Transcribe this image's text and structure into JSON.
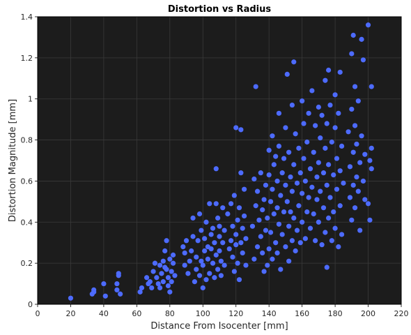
{
  "chart_data": {
    "type": "scatter",
    "title": "Distortion vs Radius",
    "xlabel": "Distance From Isocenter [mm]",
    "ylabel": "Distortion Magnitude [mm]",
    "xlim": [
      0,
      220
    ],
    "ylim": [
      0,
      1.4
    ],
    "xticks": [
      0,
      20,
      40,
      60,
      80,
      100,
      120,
      140,
      160,
      180,
      200,
      220
    ],
    "yticks": [
      0,
      0.2,
      0.4,
      0.6,
      0.8,
      1,
      1.2,
      1.4
    ],
    "xtick_labels": [
      "0",
      "20",
      "40",
      "60",
      "80",
      "100",
      "120",
      "140",
      "160",
      "180",
      "200",
      "220"
    ],
    "ytick_labels": [
      "0",
      "0.2",
      "0.4",
      "0.6",
      "0.8",
      "1",
      "1.2",
      "1.4"
    ],
    "grid": true,
    "colors": {
      "plot_background": "#1c1c1c",
      "grid": "#3a3a3a",
      "marker": "#4d6bff"
    },
    "points": [
      [
        20,
        0.03
      ],
      [
        33,
        0.05
      ],
      [
        34,
        0.06
      ],
      [
        34,
        0.07
      ],
      [
        40,
        0.1
      ],
      [
        41,
        0.04
      ],
      [
        48,
        0.07
      ],
      [
        48,
        0.1
      ],
      [
        49,
        0.14
      ],
      [
        49,
        0.15
      ],
      [
        50,
        0.05
      ],
      [
        62,
        0.06
      ],
      [
        63,
        0.08
      ],
      [
        66,
        0.13
      ],
      [
        67,
        0.1
      ],
      [
        68,
        0.11
      ],
      [
        69,
        0.08
      ],
      [
        70,
        0.16
      ],
      [
        71,
        0.2
      ],
      [
        72,
        0.13
      ],
      [
        73,
        0.1
      ],
      [
        74,
        0.19
      ],
      [
        74,
        0.08
      ],
      [
        75,
        0.15
      ],
      [
        76,
        0.21
      ],
      [
        76,
        0.11
      ],
      [
        77,
        0.18
      ],
      [
        77,
        0.26
      ],
      [
        78,
        0.17
      ],
      [
        78,
        0.31
      ],
      [
        79,
        0.09
      ],
      [
        79,
        0.13
      ],
      [
        80,
        0.22
      ],
      [
        80,
        0.06
      ],
      [
        81,
        0.16
      ],
      [
        81,
        0.11
      ],
      [
        82,
        0.2
      ],
      [
        82,
        0.24
      ],
      [
        83,
        0.14
      ],
      [
        88,
        0.28
      ],
      [
        89,
        0.25
      ],
      [
        89,
        0.19
      ],
      [
        90,
        0.31
      ],
      [
        91,
        0.15
      ],
      [
        92,
        0.21
      ],
      [
        93,
        0.26
      ],
      [
        94,
        0.33
      ],
      [
        94,
        0.42
      ],
      [
        95,
        0.11
      ],
      [
        96,
        0.17
      ],
      [
        96,
        0.23
      ],
      [
        97,
        0.31
      ],
      [
        98,
        0.14
      ],
      [
        98,
        0.44
      ],
      [
        99,
        0.36
      ],
      [
        99,
        0.21
      ],
      [
        100,
        0.08
      ],
      [
        100,
        0.19
      ],
      [
        101,
        0.26
      ],
      [
        101,
        0.32
      ],
      [
        102,
        0.12
      ],
      [
        102,
        0.4
      ],
      [
        103,
        0.28
      ],
      [
        103,
        0.22
      ],
      [
        104,
        0.49
      ],
      [
        104,
        0.15
      ],
      [
        105,
        0.34
      ],
      [
        105,
        0.27
      ],
      [
        106,
        0.2
      ],
      [
        106,
        0.37
      ],
      [
        107,
        0.13
      ],
      [
        107,
        0.3
      ],
      [
        108,
        0.49
      ],
      [
        108,
        0.66
      ],
      [
        108,
        0.24
      ],
      [
        109,
        0.42
      ],
      [
        109,
        0.17
      ],
      [
        110,
        0.33
      ],
      [
        110,
        0.26
      ],
      [
        110,
        0.38
      ],
      [
        111,
        0.21
      ],
      [
        111,
        0.14
      ],
      [
        112,
        0.3
      ],
      [
        112,
        0.47
      ],
      [
        113,
        0.19
      ],
      [
        113,
        0.36
      ],
      [
        115,
        0.44
      ],
      [
        116,
        0.27
      ],
      [
        117,
        0.31
      ],
      [
        117,
        0.49
      ],
      [
        118,
        0.23
      ],
      [
        118,
        0.38
      ],
      [
        119,
        0.16
      ],
      [
        119,
        0.53
      ],
      [
        120,
        0.29
      ],
      [
        120,
        0.86
      ],
      [
        120,
        0.34
      ],
      [
        121,
        0.41
      ],
      [
        121,
        0.2
      ],
      [
        122,
        0.12
      ],
      [
        122,
        0.47
      ],
      [
        123,
        0.64
      ],
      [
        123,
        0.85
      ],
      [
        123,
        0.3
      ],
      [
        124,
        0.37
      ],
      [
        124,
        0.25
      ],
      [
        125,
        0.43
      ],
      [
        125,
        0.56
      ],
      [
        126,
        0.19
      ],
      [
        126,
        0.32
      ],
      [
        130,
        0.38
      ],
      [
        131,
        0.61
      ],
      [
        131,
        0.22
      ],
      [
        132,
        1.06
      ],
      [
        132,
        0.48
      ],
      [
        133,
        0.55
      ],
      [
        133,
        0.28
      ],
      [
        134,
        0.41
      ],
      [
        135,
        0.64
      ],
      [
        135,
        0.33
      ],
      [
        136,
        0.46
      ],
      [
        136,
        0.25
      ],
      [
        137,
        0.51
      ],
      [
        137,
        0.16
      ],
      [
        138,
        0.58
      ],
      [
        138,
        0.36
      ],
      [
        139,
        0.42
      ],
      [
        139,
        0.19
      ],
      [
        140,
        0.75
      ],
      [
        140,
        0.63
      ],
      [
        140,
        0.27
      ],
      [
        141,
        0.5
      ],
      [
        141,
        0.35
      ],
      [
        142,
        0.82
      ],
      [
        142,
        0.56
      ],
      [
        142,
        0.22
      ],
      [
        143,
        0.68
      ],
      [
        143,
        0.44
      ],
      [
        144,
        0.3
      ],
      [
        144,
        0.72
      ],
      [
        145,
        0.47
      ],
      [
        145,
        0.6
      ],
      [
        145,
        0.25
      ],
      [
        146,
        0.93
      ],
      [
        146,
        0.39
      ],
      [
        146,
        0.77
      ],
      [
        147,
        0.53
      ],
      [
        147,
        0.17
      ],
      [
        148,
        0.64
      ],
      [
        148,
        0.34
      ],
      [
        149,
        0.45
      ],
      [
        149,
        0.71
      ],
      [
        150,
        0.86
      ],
      [
        150,
        0.58
      ],
      [
        150,
        0.28
      ],
      [
        151,
        1.12
      ],
      [
        151,
        0.5
      ],
      [
        152,
        0.74
      ],
      [
        152,
        0.38
      ],
      [
        152,
        0.21
      ],
      [
        153,
        0.62
      ],
      [
        153,
        0.45
      ],
      [
        154,
        0.97
      ],
      [
        154,
        0.55
      ],
      [
        154,
        0.31
      ],
      [
        155,
        1.18
      ],
      [
        155,
        0.68
      ],
      [
        155,
        0.42
      ],
      [
        156,
        0.83
      ],
      [
        156,
        0.26
      ],
      [
        157,
        0.59
      ],
      [
        157,
        0.36
      ],
      [
        158,
        0.76
      ],
      [
        158,
        0.48
      ],
      [
        159,
        0.64
      ],
      [
        159,
        0.3
      ],
      [
        160,
        0.99
      ],
      [
        160,
        0.54
      ],
      [
        160,
        0.4
      ],
      [
        161,
        0.71
      ],
      [
        161,
        0.88
      ],
      [
        162,
        0.32
      ],
      [
        162,
        0.6
      ],
      [
        163,
        0.45
      ],
      [
        163,
        0.79
      ],
      [
        164,
        0.93
      ],
      [
        164,
        0.52
      ],
      [
        165,
        0.66
      ],
      [
        165,
        0.37
      ],
      [
        166,
        1.04
      ],
      [
        166,
        0.57
      ],
      [
        167,
        0.74
      ],
      [
        167,
        0.44
      ],
      [
        168,
        0.87
      ],
      [
        168,
        0.31
      ],
      [
        169,
        0.62
      ],
      [
        169,
        0.51
      ],
      [
        170,
        0.96
      ],
      [
        170,
        0.69
      ],
      [
        170,
        0.4
      ],
      [
        171,
        0.81
      ],
      [
        171,
        0.55
      ],
      [
        172,
        0.29
      ],
      [
        172,
        0.92
      ],
      [
        173,
        0.64
      ],
      [
        173,
        0.47
      ],
      [
        174,
        1.09
      ],
      [
        174,
        0.76
      ],
      [
        174,
        0.35
      ],
      [
        175,
        0.58
      ],
      [
        175,
        0.88
      ],
      [
        175,
        0.18
      ],
      [
        176,
        1.14
      ],
      [
        176,
        0.68
      ],
      [
        176,
        0.42
      ],
      [
        177,
        0.97
      ],
      [
        177,
        0.52
      ],
      [
        178,
        0.79
      ],
      [
        178,
        0.31
      ],
      [
        179,
        0.63
      ],
      [
        179,
        0.45
      ],
      [
        180,
        1.02
      ],
      [
        180,
        0.86
      ],
      [
        180,
        0.37
      ],
      [
        181,
        0.71
      ],
      [
        181,
        0.56
      ],
      [
        182,
        0.93
      ],
      [
        182,
        0.28
      ],
      [
        183,
        1.13
      ],
      [
        183,
        0.65
      ],
      [
        183,
        0.48
      ],
      [
        184,
        0.77
      ],
      [
        184,
        0.34
      ],
      [
        185,
        0.59
      ],
      [
        188,
        0.84
      ],
      [
        189,
        0.67
      ],
      [
        189,
        0.52
      ],
      [
        190,
        1.22
      ],
      [
        190,
        0.95
      ],
      [
        190,
        0.41
      ],
      [
        191,
        1.31
      ],
      [
        191,
        0.74
      ],
      [
        191,
        0.58
      ],
      [
        192,
        1.06
      ],
      [
        192,
        0.87
      ],
      [
        192,
        0.47
      ],
      [
        193,
        0.62
      ],
      [
        193,
        0.78
      ],
      [
        194,
        0.99
      ],
      [
        194,
        0.55
      ],
      [
        195,
        0.69
      ],
      [
        195,
        0.36
      ],
      [
        196,
        1.29
      ],
      [
        196,
        0.82
      ],
      [
        197,
        1.19
      ],
      [
        197,
        0.6
      ],
      [
        198,
        0.73
      ],
      [
        198,
        0.51
      ],
      [
        200,
        1.36
      ],
      [
        200,
        0.49
      ],
      [
        201,
        0.7
      ],
      [
        201,
        0.41
      ],
      [
        202,
        1.06
      ],
      [
        202,
        0.76
      ],
      [
        202,
        0.66
      ]
    ]
  }
}
